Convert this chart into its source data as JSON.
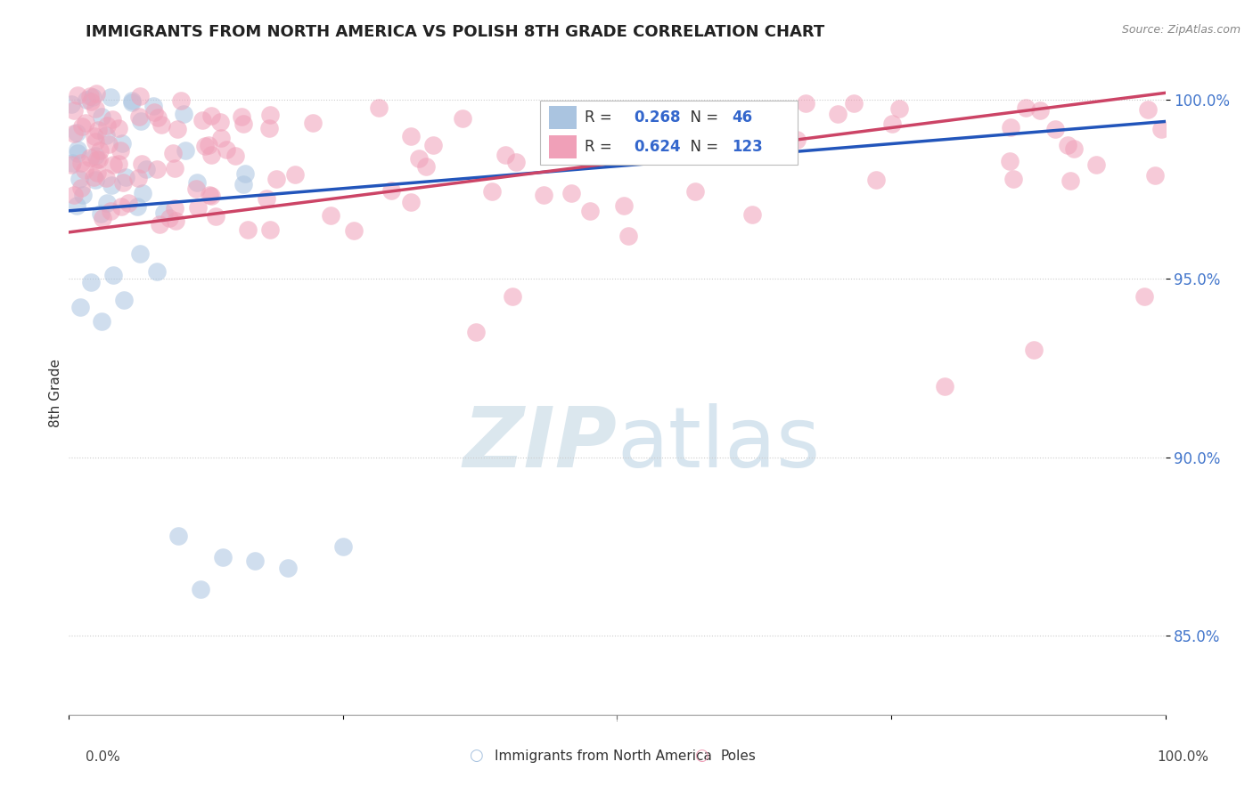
{
  "title": "IMMIGRANTS FROM NORTH AMERICA VS POLISH 8TH GRADE CORRELATION CHART",
  "source": "Source: ZipAtlas.com",
  "ylabel": "8th Grade",
  "xlim": [
    0.0,
    1.0
  ],
  "ylim": [
    0.828,
    1.008
  ],
  "yticks": [
    0.85,
    0.9,
    0.95,
    1.0
  ],
  "ytick_labels": [
    "85.0%",
    "90.0%",
    "95.0%",
    "100.0%"
  ],
  "bg_color": "#ffffff",
  "grid_color": "#cccccc",
  "watermark_zip": "ZIP",
  "watermark_atlas": "atlas",
  "legend_entries": [
    "Immigrants from North America",
    "Poles"
  ],
  "blue_color": "#aac4e0",
  "pink_color": "#f0a0b8",
  "blue_line_color": "#2255bb",
  "pink_line_color": "#cc4466",
  "R_blue": 0.268,
  "N_blue": 46,
  "R_pink": 0.624,
  "N_pink": 123,
  "blue_line_x0": 0.0,
  "blue_line_y0": 0.969,
  "blue_line_x1": 1.0,
  "blue_line_y1": 0.994,
  "pink_line_x0": 0.0,
  "pink_line_y0": 0.963,
  "pink_line_x1": 1.0,
  "pink_line_y1": 1.002
}
